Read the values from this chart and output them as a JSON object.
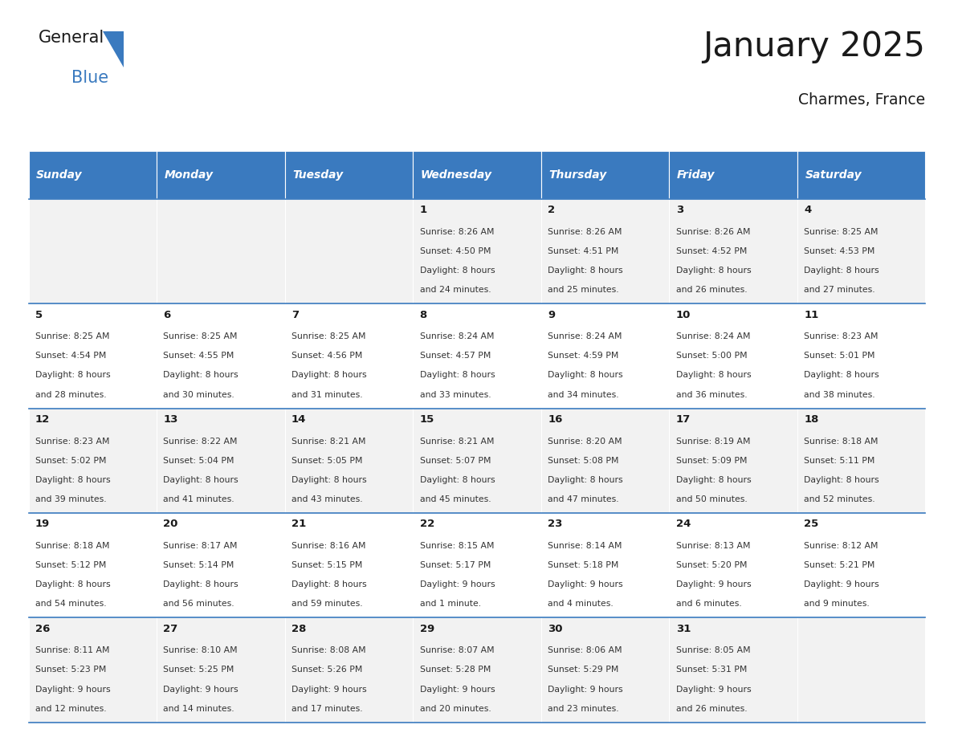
{
  "title": "January 2025",
  "subtitle": "Charmes, France",
  "header_color": "#3a7abf",
  "header_text_color": "#ffffff",
  "cell_bg_even": "#f2f2f2",
  "cell_bg_odd": "#ffffff",
  "text_color": "#333333",
  "day_number_color": "#1a1a1a",
  "day_names": [
    "Sunday",
    "Monday",
    "Tuesday",
    "Wednesday",
    "Thursday",
    "Friday",
    "Saturday"
  ],
  "days": [
    {
      "day": 1,
      "col": 3,
      "row": 0,
      "sunrise": "8:26 AM",
      "sunset": "4:50 PM",
      "daylight_h": "8 hours",
      "daylight_m": "24 minutes."
    },
    {
      "day": 2,
      "col": 4,
      "row": 0,
      "sunrise": "8:26 AM",
      "sunset": "4:51 PM",
      "daylight_h": "8 hours",
      "daylight_m": "25 minutes."
    },
    {
      "day": 3,
      "col": 5,
      "row": 0,
      "sunrise": "8:26 AM",
      "sunset": "4:52 PM",
      "daylight_h": "8 hours",
      "daylight_m": "26 minutes."
    },
    {
      "day": 4,
      "col": 6,
      "row": 0,
      "sunrise": "8:25 AM",
      "sunset": "4:53 PM",
      "daylight_h": "8 hours",
      "daylight_m": "27 minutes."
    },
    {
      "day": 5,
      "col": 0,
      "row": 1,
      "sunrise": "8:25 AM",
      "sunset": "4:54 PM",
      "daylight_h": "8 hours",
      "daylight_m": "28 minutes."
    },
    {
      "day": 6,
      "col": 1,
      "row": 1,
      "sunrise": "8:25 AM",
      "sunset": "4:55 PM",
      "daylight_h": "8 hours",
      "daylight_m": "30 minutes."
    },
    {
      "day": 7,
      "col": 2,
      "row": 1,
      "sunrise": "8:25 AM",
      "sunset": "4:56 PM",
      "daylight_h": "8 hours",
      "daylight_m": "31 minutes."
    },
    {
      "day": 8,
      "col": 3,
      "row": 1,
      "sunrise": "8:24 AM",
      "sunset": "4:57 PM",
      "daylight_h": "8 hours",
      "daylight_m": "33 minutes."
    },
    {
      "day": 9,
      "col": 4,
      "row": 1,
      "sunrise": "8:24 AM",
      "sunset": "4:59 PM",
      "daylight_h": "8 hours",
      "daylight_m": "34 minutes."
    },
    {
      "day": 10,
      "col": 5,
      "row": 1,
      "sunrise": "8:24 AM",
      "sunset": "5:00 PM",
      "daylight_h": "8 hours",
      "daylight_m": "36 minutes."
    },
    {
      "day": 11,
      "col": 6,
      "row": 1,
      "sunrise": "8:23 AM",
      "sunset": "5:01 PM",
      "daylight_h": "8 hours",
      "daylight_m": "38 minutes."
    },
    {
      "day": 12,
      "col": 0,
      "row": 2,
      "sunrise": "8:23 AM",
      "sunset": "5:02 PM",
      "daylight_h": "8 hours",
      "daylight_m": "39 minutes."
    },
    {
      "day": 13,
      "col": 1,
      "row": 2,
      "sunrise": "8:22 AM",
      "sunset": "5:04 PM",
      "daylight_h": "8 hours",
      "daylight_m": "41 minutes."
    },
    {
      "day": 14,
      "col": 2,
      "row": 2,
      "sunrise": "8:21 AM",
      "sunset": "5:05 PM",
      "daylight_h": "8 hours",
      "daylight_m": "43 minutes."
    },
    {
      "day": 15,
      "col": 3,
      "row": 2,
      "sunrise": "8:21 AM",
      "sunset": "5:07 PM",
      "daylight_h": "8 hours",
      "daylight_m": "45 minutes."
    },
    {
      "day": 16,
      "col": 4,
      "row": 2,
      "sunrise": "8:20 AM",
      "sunset": "5:08 PM",
      "daylight_h": "8 hours",
      "daylight_m": "47 minutes."
    },
    {
      "day": 17,
      "col": 5,
      "row": 2,
      "sunrise": "8:19 AM",
      "sunset": "5:09 PM",
      "daylight_h": "8 hours",
      "daylight_m": "50 minutes."
    },
    {
      "day": 18,
      "col": 6,
      "row": 2,
      "sunrise": "8:18 AM",
      "sunset": "5:11 PM",
      "daylight_h": "8 hours",
      "daylight_m": "52 minutes."
    },
    {
      "day": 19,
      "col": 0,
      "row": 3,
      "sunrise": "8:18 AM",
      "sunset": "5:12 PM",
      "daylight_h": "8 hours",
      "daylight_m": "54 minutes."
    },
    {
      "day": 20,
      "col": 1,
      "row": 3,
      "sunrise": "8:17 AM",
      "sunset": "5:14 PM",
      "daylight_h": "8 hours",
      "daylight_m": "56 minutes."
    },
    {
      "day": 21,
      "col": 2,
      "row": 3,
      "sunrise": "8:16 AM",
      "sunset": "5:15 PM",
      "daylight_h": "8 hours",
      "daylight_m": "59 minutes."
    },
    {
      "day": 22,
      "col": 3,
      "row": 3,
      "sunrise": "8:15 AM",
      "sunset": "5:17 PM",
      "daylight_h": "9 hours",
      "daylight_m": "1 minute."
    },
    {
      "day": 23,
      "col": 4,
      "row": 3,
      "sunrise": "8:14 AM",
      "sunset": "5:18 PM",
      "daylight_h": "9 hours",
      "daylight_m": "4 minutes."
    },
    {
      "day": 24,
      "col": 5,
      "row": 3,
      "sunrise": "8:13 AM",
      "sunset": "5:20 PM",
      "daylight_h": "9 hours",
      "daylight_m": "6 minutes."
    },
    {
      "day": 25,
      "col": 6,
      "row": 3,
      "sunrise": "8:12 AM",
      "sunset": "5:21 PM",
      "daylight_h": "9 hours",
      "daylight_m": "9 minutes."
    },
    {
      "day": 26,
      "col": 0,
      "row": 4,
      "sunrise": "8:11 AM",
      "sunset": "5:23 PM",
      "daylight_h": "9 hours",
      "daylight_m": "12 minutes."
    },
    {
      "day": 27,
      "col": 1,
      "row": 4,
      "sunrise": "8:10 AM",
      "sunset": "5:25 PM",
      "daylight_h": "9 hours",
      "daylight_m": "14 minutes."
    },
    {
      "day": 28,
      "col": 2,
      "row": 4,
      "sunrise": "8:08 AM",
      "sunset": "5:26 PM",
      "daylight_h": "9 hours",
      "daylight_m": "17 minutes."
    },
    {
      "day": 29,
      "col": 3,
      "row": 4,
      "sunrise": "8:07 AM",
      "sunset": "5:28 PM",
      "daylight_h": "9 hours",
      "daylight_m": "20 minutes."
    },
    {
      "day": 30,
      "col": 4,
      "row": 4,
      "sunrise": "8:06 AM",
      "sunset": "5:29 PM",
      "daylight_h": "9 hours",
      "daylight_m": "23 minutes."
    },
    {
      "day": 31,
      "col": 5,
      "row": 4,
      "sunrise": "8:05 AM",
      "sunset": "5:31 PM",
      "daylight_h": "9 hours",
      "daylight_m": "26 minutes."
    }
  ]
}
